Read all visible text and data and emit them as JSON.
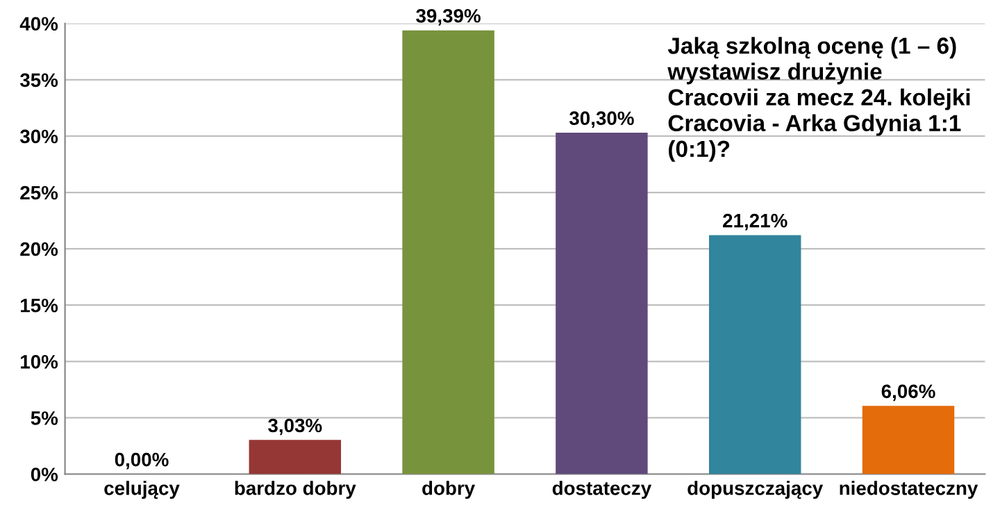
{
  "chart_data": {
    "type": "bar",
    "title": "Jaką szkolną ocenę (1 – 6)\nwystawisz drużynie\nCracovii za mecz 24. kolejki\nCracovia - Arka Gdynia 1:1\n(0:1)?",
    "categories": [
      "celujący",
      "bardzo dobry",
      "dobry",
      "dostateczy",
      "dopuszczający",
      "niedostateczny"
    ],
    "values": [
      0,
      3.03,
      39.39,
      30.3,
      21.21,
      6.06
    ],
    "value_labels": [
      "0,00%",
      "3,03%",
      "39,39%",
      "30,30%",
      "21,21%",
      "6,06%"
    ],
    "colors": [
      "#4f81bd",
      "#953735",
      "#77933c",
      "#604a7b",
      "#31859c",
      "#e46c0a"
    ],
    "ylim": [
      0,
      40
    ],
    "yticks": [
      {
        "value": 0,
        "label": "0%"
      },
      {
        "value": 5,
        "label": "5%"
      },
      {
        "value": 10,
        "label": "10%"
      },
      {
        "value": 15,
        "label": "15%"
      },
      {
        "value": 20,
        "label": "20%"
      },
      {
        "value": 25,
        "label": "25%"
      },
      {
        "value": 30,
        "label": "30%"
      },
      {
        "value": 35,
        "label": "35%"
      },
      {
        "value": 40,
        "label": "40%"
      }
    ],
    "grid": "y",
    "legend": false
  }
}
